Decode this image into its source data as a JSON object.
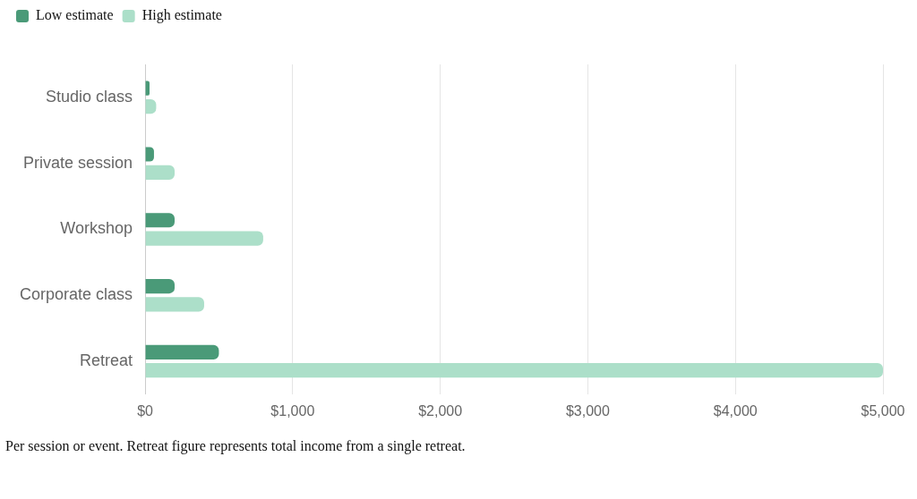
{
  "chart_data": {
    "type": "bar",
    "orientation": "horizontal",
    "categories": [
      "Studio class",
      "Private session",
      "Workshop",
      "Corporate class",
      "Retreat"
    ],
    "series": [
      {
        "name": "Low estimate",
        "color": "#4a9a78",
        "values": [
          30,
          60,
          200,
          200,
          500
        ]
      },
      {
        "name": "High estimate",
        "color": "#acdfc9",
        "values": [
          75,
          200,
          800,
          400,
          5000
        ]
      }
    ],
    "xlim": [
      0,
      5000
    ],
    "xticks": [
      {
        "value": 0,
        "label": "$0"
      },
      {
        "value": 1000,
        "label": "$1,000"
      },
      {
        "value": 2000,
        "label": "$2,000"
      },
      {
        "value": 3000,
        "label": "$3,000"
      },
      {
        "value": 4000,
        "label": "$4,000"
      },
      {
        "value": 5000,
        "label": "$5,000"
      }
    ],
    "grid": "x",
    "legend": "top left",
    "annotations": [
      "Per session or event. Retreat figure represents total income from a single retreat."
    ]
  }
}
